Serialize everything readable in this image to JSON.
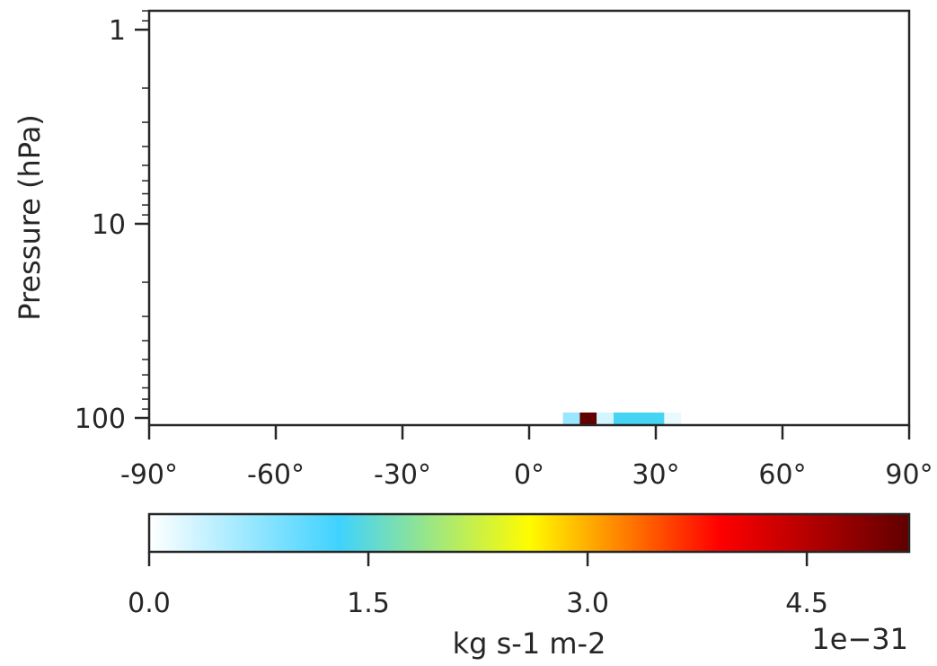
{
  "chart_data": {
    "type": "heatmap",
    "xlabel": "",
    "ylabel": "Pressure (hPa)",
    "xlim": [
      -90,
      90
    ],
    "ylim": [
      1,
      100
    ],
    "yscale": "log",
    "y_inverted": false,
    "x_ticks": [
      {
        "value": -90,
        "label": "-90°"
      },
      {
        "value": -60,
        "label": "-60°"
      },
      {
        "value": -30,
        "label": "-30°"
      },
      {
        "value": 0,
        "label": "0°"
      },
      {
        "value": 30,
        "label": "30°"
      },
      {
        "value": 60,
        "label": "60°"
      },
      {
        "value": 90,
        "label": "90°"
      }
    ],
    "y_ticks": [
      {
        "value": 1,
        "label": "1"
      },
      {
        "value": 10,
        "label": "10"
      },
      {
        "value": 100,
        "label": "100"
      }
    ],
    "cells": [
      {
        "lat_min": 8,
        "lat_max": 12,
        "p_top": 100,
        "p_bottom": 100,
        "value": 0.7
      },
      {
        "lat_min": 12,
        "lat_max": 16,
        "p_top": 100,
        "p_bottom": 100,
        "value": 5.3
      },
      {
        "lat_min": 16,
        "lat_max": 20,
        "p_top": 100,
        "p_bottom": 100,
        "value": 0.3
      },
      {
        "lat_min": 20,
        "lat_max": 32,
        "p_top": 100,
        "p_bottom": 100,
        "value": 1.35
      },
      {
        "lat_min": 32,
        "lat_max": 36,
        "p_top": 100,
        "p_bottom": 100,
        "value": 0.15
      }
    ],
    "colorbar": {
      "label": "kg s-1 m-2",
      "min": 0.0,
      "max": 5.2,
      "ticks": [
        {
          "value": 0.0,
          "label": "0.0"
        },
        {
          "value": 1.5,
          "label": "1.5"
        },
        {
          "value": 3.0,
          "label": "3.0"
        },
        {
          "value": 4.5,
          "label": "4.5"
        }
      ],
      "offset_text": "1e−31",
      "colormap": [
        "#ffffff",
        "#3fd2ff",
        "#fffc00",
        "#ff0000",
        "#600000"
      ]
    },
    "grid": false
  }
}
